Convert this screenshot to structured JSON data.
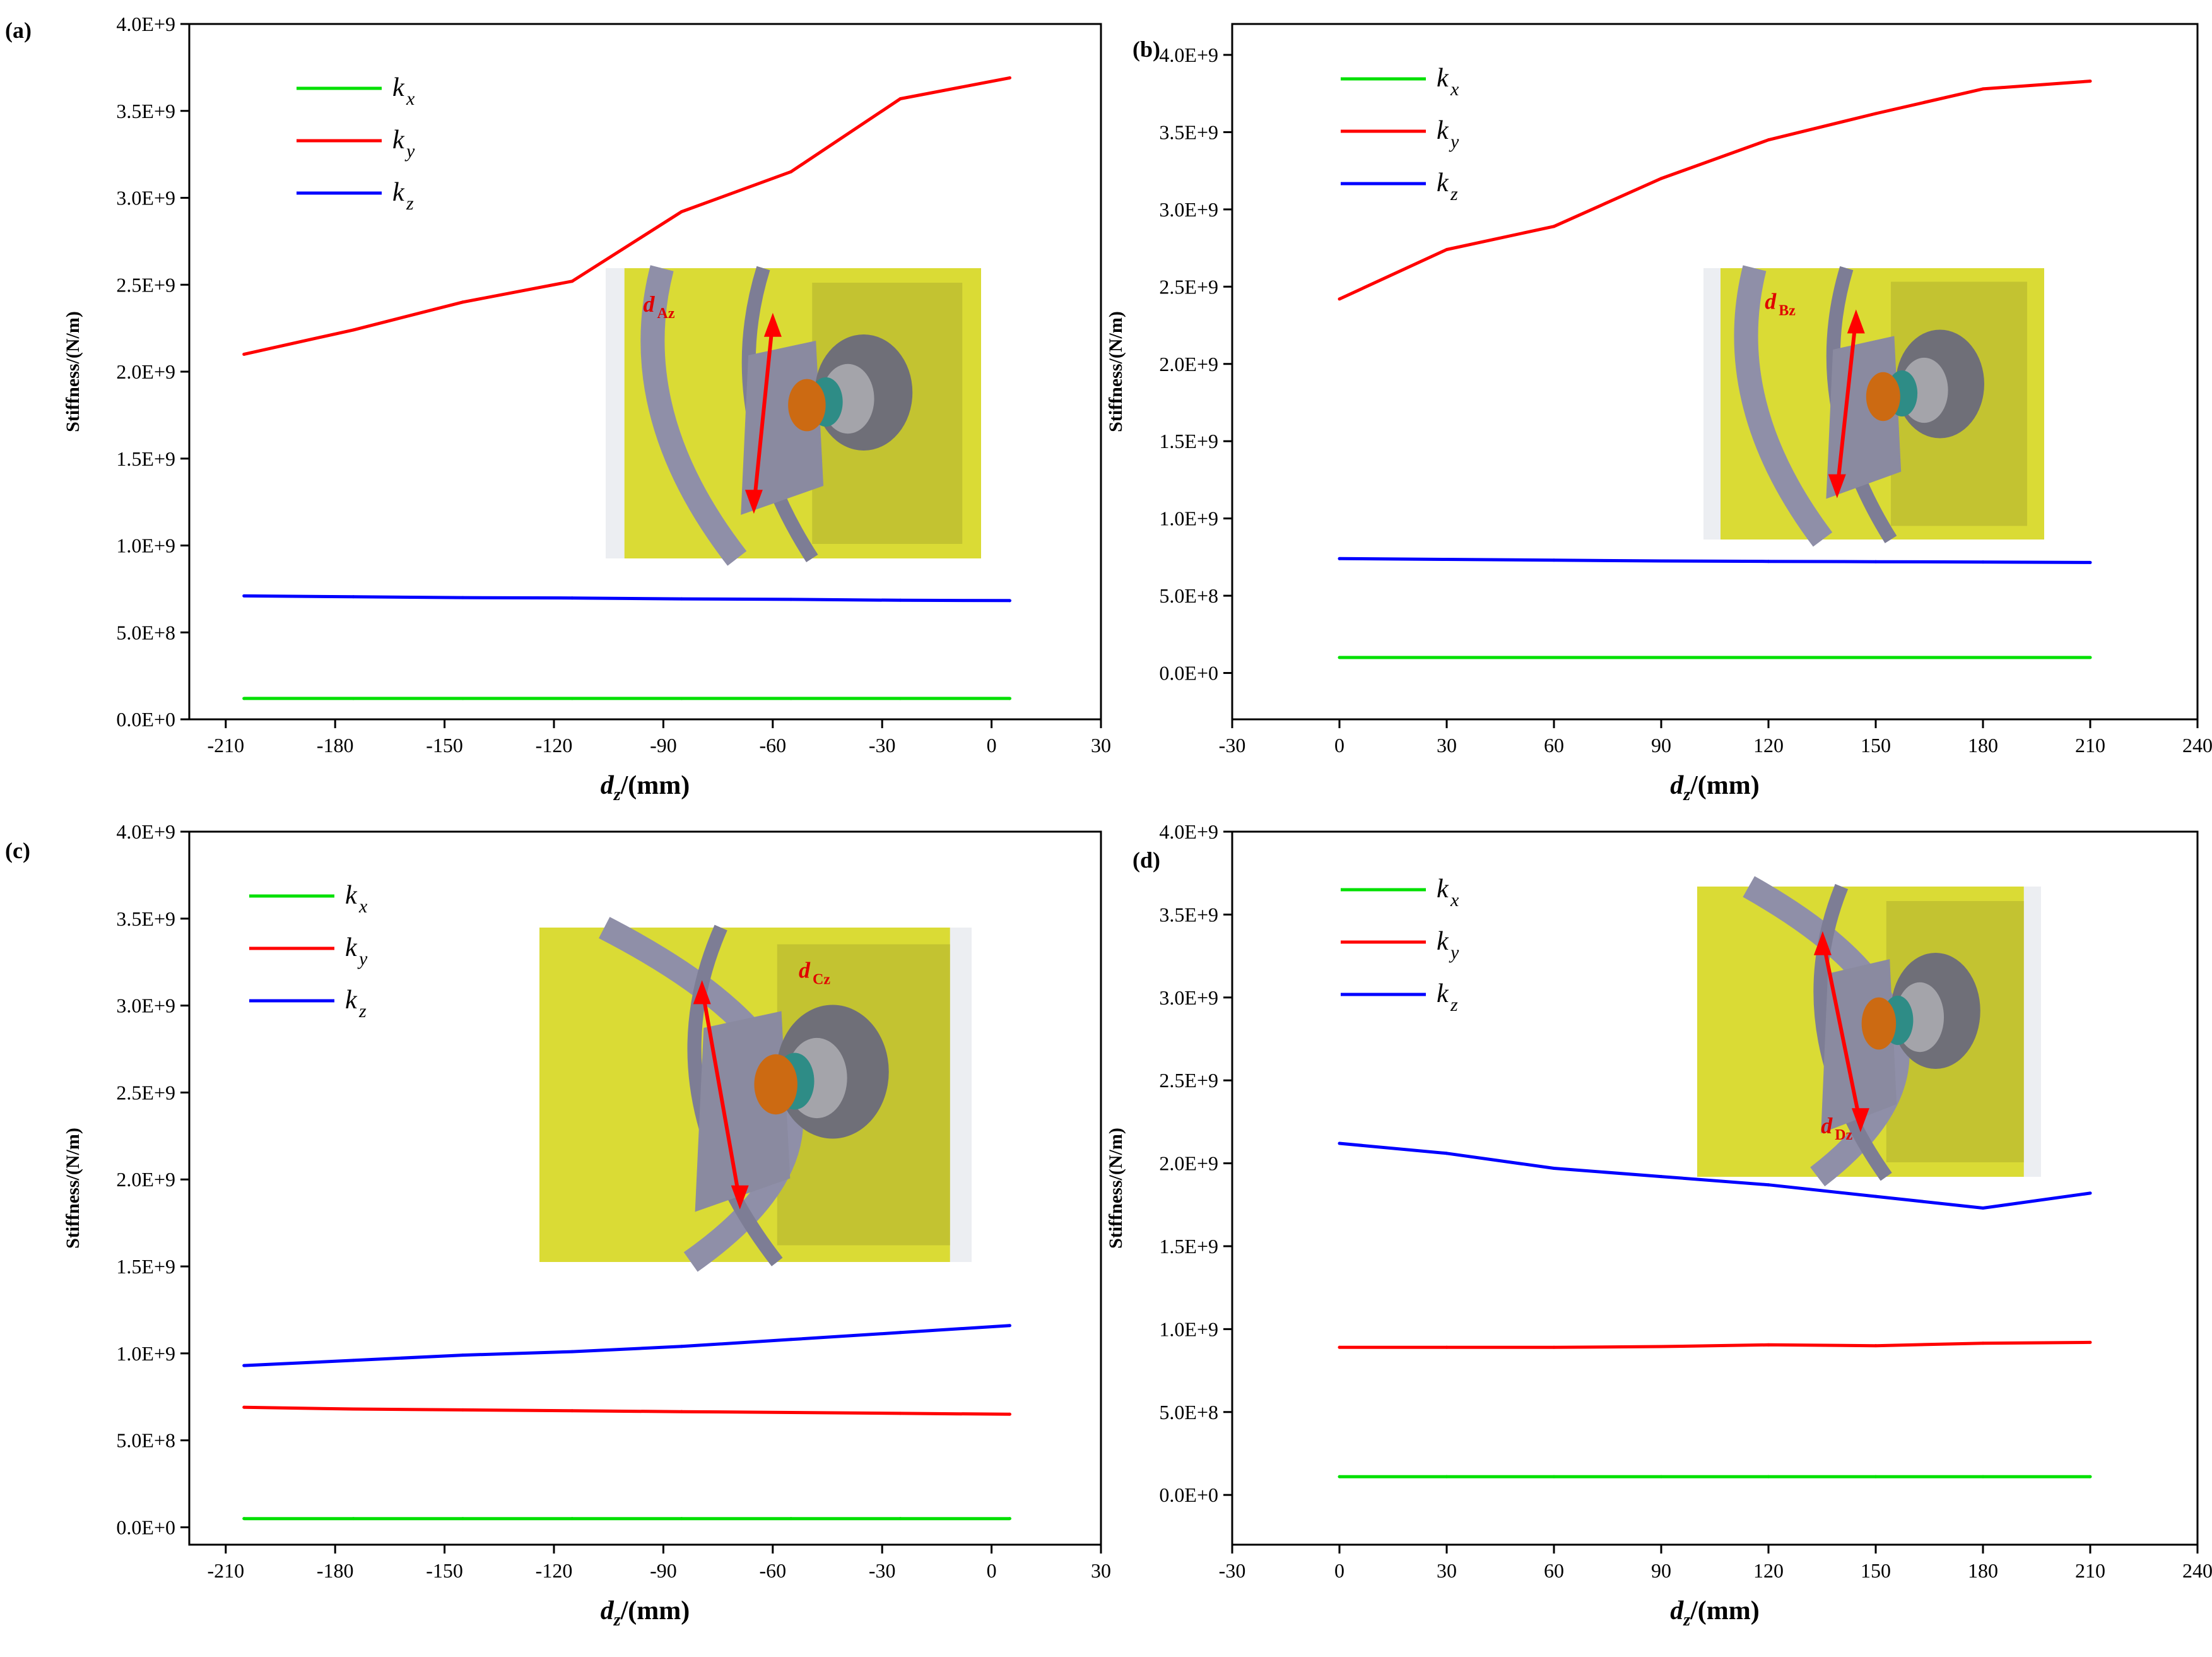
{
  "colors": {
    "kx": "#00e000",
    "ky": "#ff0000",
    "kz": "#0000ff"
  },
  "chart_data": [
    {
      "panel_label": "(a)",
      "type": "line",
      "xlabel_main": "d",
      "xlabel_sub": "z",
      "xlabel_unit": "/(mm)",
      "ylabel": "Stiffness/(N/m)",
      "xlim": [
        -220,
        30
      ],
      "ylim": [
        0,
        4000000000.0
      ],
      "xticks": [
        -210,
        -180,
        -150,
        -120,
        -90,
        -60,
        -30,
        0,
        30
      ],
      "xtick_labels": [
        "-210",
        "-180",
        "-150",
        "-120",
        "-90",
        "-60",
        "-30",
        "0",
        "30"
      ],
      "yticks": [
        0,
        500000000.0,
        1000000000.0,
        1500000000.0,
        2000000000.0,
        2500000000.0,
        3000000000.0,
        3500000000.0,
        4000000000.0
      ],
      "ytick_labels": [
        "0.0E+0",
        "5.0E+8",
        "1.0E+9",
        "1.5E+9",
        "2.0E+9",
        "2.5E+9",
        "3.0E+9",
        "3.5E+9",
        "4.0E+9"
      ],
      "x": [
        -205,
        -175,
        -145,
        -115,
        -85,
        -55,
        -25,
        5
      ],
      "series": [
        {
          "name": "k",
          "sub": "x",
          "key": "kx",
          "values": [
            120000000.0,
            120000000.0,
            120000000.0,
            120000000.0,
            120000000.0,
            120000000.0,
            120000000.0,
            120000000.0
          ]
        },
        {
          "name": "k",
          "sub": "y",
          "key": "ky",
          "values": [
            2100000000.0,
            2240000000.0,
            2400000000.0,
            2520000000.0,
            2920000000.0,
            3150000000.0,
            3570000000.0,
            3690000000.0
          ]
        },
        {
          "name": "k",
          "sub": "z",
          "key": "kz",
          "values": [
            710000000.0,
            705000000.0,
            700000000.0,
            698000000.0,
            693000000.0,
            690000000.0,
            685000000.0,
            683000000.0
          ]
        }
      ],
      "inset_label_main": "d",
      "inset_label_sub": "Az"
    },
    {
      "panel_label": "(b)",
      "type": "line",
      "xlabel_main": "d",
      "xlabel_sub": "z",
      "xlabel_unit": "/(mm)",
      "ylabel": "Stiffness/(N/m)",
      "xlim": [
        -30,
        240
      ],
      "ylim": [
        -300000000.0,
        4200000000.0
      ],
      "xticks": [
        -30,
        0,
        30,
        60,
        90,
        120,
        150,
        180,
        210,
        240
      ],
      "xtick_labels": [
        "-30",
        "0",
        "30",
        "60",
        "90",
        "120",
        "150",
        "180",
        "210",
        "240"
      ],
      "yticks": [
        0,
        500000000.0,
        1000000000.0,
        1500000000.0,
        2000000000.0,
        2500000000.0,
        3000000000.0,
        3500000000.0,
        4000000000.0
      ],
      "ytick_labels": [
        "0.0E+0",
        "5.0E+8",
        "1.0E+9",
        "1.5E+9",
        "2.0E+9",
        "2.5E+9",
        "3.0E+9",
        "3.5E+9",
        "4.0E+9"
      ],
      "x": [
        0,
        30,
        60,
        90,
        120,
        150,
        180,
        210
      ],
      "series": [
        {
          "name": "k",
          "sub": "x",
          "key": "kx",
          "values": [
            100000000.0,
            100000000.0,
            100000000.0,
            100000000.0,
            100000000.0,
            100000000.0,
            100000000.0,
            100000000.0
          ]
        },
        {
          "name": "k",
          "sub": "y",
          "key": "ky",
          "values": [
            2420000000.0,
            2740000000.0,
            2890000000.0,
            3200000000.0,
            3450000000.0,
            3620000000.0,
            3780000000.0,
            3830000000.0
          ]
        },
        {
          "name": "k",
          "sub": "z",
          "key": "kz",
          "values": [
            740000000.0,
            735000000.0,
            730000000.0,
            725000000.0,
            722000000.0,
            720000000.0,
            718000000.0,
            715000000.0
          ]
        }
      ],
      "inset_label_main": "d",
      "inset_label_sub": "Bz"
    },
    {
      "panel_label": "(c)",
      "type": "line",
      "xlabel_main": "d",
      "xlabel_sub": "z",
      "xlabel_unit": "/(mm)",
      "ylabel": "Stiffness/(N/m)",
      "xlim": [
        -220,
        30
      ],
      "ylim": [
        -100000000.0,
        4000000000.0
      ],
      "xticks": [
        -210,
        -180,
        -150,
        -120,
        -90,
        -60,
        -30,
        0,
        30
      ],
      "xtick_labels": [
        "-210",
        "-180",
        "-150",
        "-120",
        "-90",
        "-60",
        "-30",
        "0",
        "30"
      ],
      "yticks": [
        0,
        500000000.0,
        1000000000.0,
        1500000000.0,
        2000000000.0,
        2500000000.0,
        3000000000.0,
        3500000000.0,
        4000000000.0
      ],
      "ytick_labels": [
        "0.0E+0",
        "5.0E+8",
        "1.0E+9",
        "1.5E+9",
        "2.0E+9",
        "2.5E+9",
        "3.0E+9",
        "3.5E+9",
        "4.0E+9"
      ],
      "x": [
        -205,
        -175,
        -145,
        -115,
        -85,
        -55,
        -25,
        5
      ],
      "series": [
        {
          "name": "k",
          "sub": "x",
          "key": "kx",
          "values": [
            50000000.0,
            50000000.0,
            50000000.0,
            50000000.0,
            50000000.0,
            50000000.0,
            50000000.0,
            50000000.0
          ]
        },
        {
          "name": "k",
          "sub": "y",
          "key": "ky",
          "values": [
            690000000.0,
            680000000.0,
            675000000.0,
            670000000.0,
            665000000.0,
            660000000.0,
            655000000.0,
            650000000.0
          ]
        },
        {
          "name": "k",
          "sub": "z",
          "key": "kz",
          "values": [
            930000000.0,
            960000000.0,
            990000000.0,
            1010000000.0,
            1040000000.0,
            1080000000.0,
            1120000000.0,
            1160000000.0
          ]
        }
      ],
      "inset_label_main": "d",
      "inset_label_sub": "Cz"
    },
    {
      "panel_label": "(d)",
      "type": "line",
      "xlabel_main": "d",
      "xlabel_sub": "z",
      "xlabel_unit": "/(mm)",
      "ylabel": "Stiffness/(N/m)",
      "xlim": [
        -30,
        240
      ],
      "ylim": [
        -300000000.0,
        4000000000.0
      ],
      "xticks": [
        -30,
        0,
        30,
        60,
        90,
        120,
        150,
        180,
        210,
        240
      ],
      "xtick_labels": [
        "-30",
        "0",
        "30",
        "60",
        "90",
        "120",
        "150",
        "180",
        "210",
        "240"
      ],
      "yticks": [
        0,
        500000000.0,
        1000000000.0,
        1500000000.0,
        2000000000.0,
        2500000000.0,
        3000000000.0,
        3500000000.0,
        4000000000.0
      ],
      "ytick_labels": [
        "0.0E+0",
        "5.0E+8",
        "1.0E+9",
        "1.5E+9",
        "2.0E+9",
        "2.5E+9",
        "3.0E+9",
        "3.5E+9",
        "4.0E+9"
      ],
      "x": [
        0,
        30,
        60,
        90,
        120,
        150,
        180,
        210
      ],
      "series": [
        {
          "name": "k",
          "sub": "x",
          "key": "kx",
          "values": [
            110000000.0,
            110000000.0,
            110000000.0,
            110000000.0,
            110000000.0,
            110000000.0,
            110000000.0,
            110000000.0
          ]
        },
        {
          "name": "k",
          "sub": "y",
          "key": "ky",
          "values": [
            890000000.0,
            890000000.0,
            890000000.0,
            895000000.0,
            905000000.0,
            900000000.0,
            915000000.0,
            920000000.0
          ]
        },
        {
          "name": "k",
          "sub": "z",
          "key": "kz",
          "values": [
            2120000000.0,
            2060000000.0,
            1970000000.0,
            1920000000.0,
            1870000000.0,
            1800000000.0,
            1730000000.0,
            1820000000.0
          ]
        }
      ],
      "inset_label_main": "d",
      "inset_label_sub": "Dz"
    }
  ]
}
